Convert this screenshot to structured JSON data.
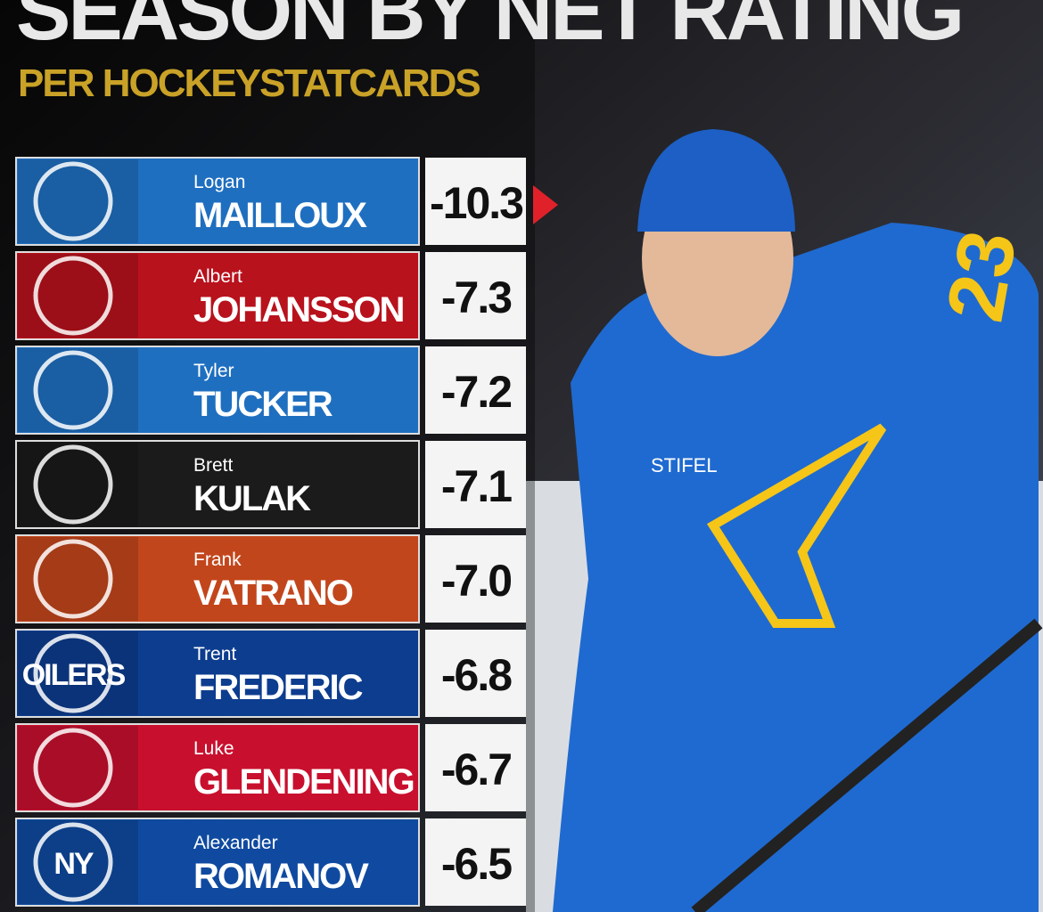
{
  "header": {
    "title": "SEASON BY NET RATING",
    "subtitle": "PER HOCKEYSTATCARDS"
  },
  "rows": [
    {
      "first": "Logan",
      "last": "MAILLOUX",
      "value": "-10.3",
      "color": "#1f6fc0"
    },
    {
      "first": "Albert",
      "last": "JOHANSSON",
      "value": "-7.3",
      "color": "#b8121d"
    },
    {
      "first": "Tyler",
      "last": "TUCKER",
      "value": "-7.2",
      "color": "#1f6fc0"
    },
    {
      "first": "Brett",
      "last": "KULAK",
      "value": "-7.1",
      "color": "#1b1b1b"
    },
    {
      "first": "Frank",
      "last": "VATRANO",
      "value": "-7.0",
      "color": "#c2461c"
    },
    {
      "first": "Trent",
      "last": "FREDERIC",
      "value": "-6.8",
      "color": "#0d3d8f",
      "logo_text": "OILERS"
    },
    {
      "first": "Luke",
      "last": "GLENDENING",
      "value": "-6.7",
      "color": "#c8102e"
    },
    {
      "first": "Alexander",
      "last": "ROMANOV",
      "value": "-6.5",
      "color": "#0f4aa0",
      "logo_text": "NY"
    }
  ],
  "photo": {
    "jersey_number": "23",
    "sponsor": "STIFEL"
  }
}
